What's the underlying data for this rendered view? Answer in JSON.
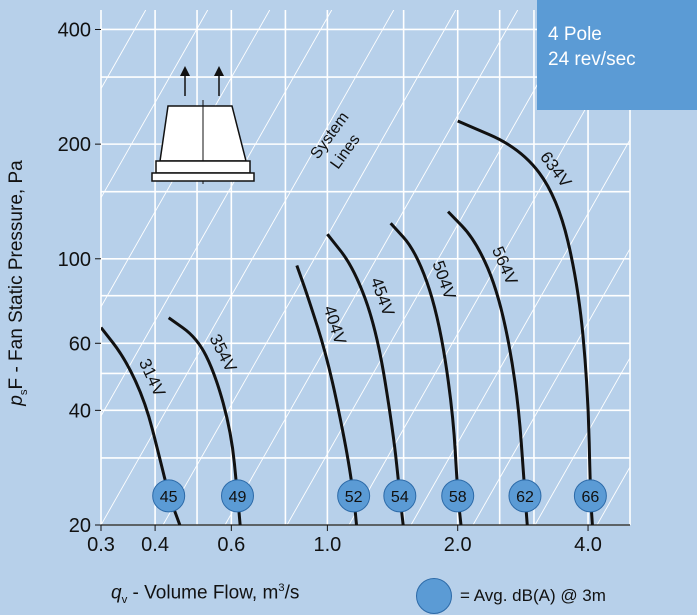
{
  "info": {
    "line1": "4 Pole",
    "line2": "24 rev/sec"
  },
  "axes": {
    "y_sym": "p",
    "y_sub": "s",
    "y_rest": "F - Fan Static Pressure, Pa",
    "x_sym": "q",
    "x_sub": "v",
    "x_rest": " - Volume Flow, m",
    "x_sup": "3",
    "x_end": "/s"
  },
  "legend": {
    "text": "= Avg. dB(A) @ 3m"
  },
  "system_lines_label": [
    "System",
    "Lines"
  ],
  "chart_data": {
    "type": "line",
    "x_scale": "log",
    "y_scale": "log",
    "xlim": [
      0.3,
      5.0
    ],
    "ylim": [
      20,
      450
    ],
    "x_ticks": [
      {
        "v": 0.3,
        "label": "0.3"
      },
      {
        "v": 0.4,
        "label": "0.4"
      },
      {
        "v": 0.6,
        "label": "0.6"
      },
      {
        "v": 1.0,
        "label": "1.0"
      },
      {
        "v": 2.0,
        "label": "2.0"
      },
      {
        "v": 4.0,
        "label": "4.0"
      }
    ],
    "y_ticks": [
      {
        "v": 20,
        "label": "20"
      },
      {
        "v": 40,
        "label": "40"
      },
      {
        "v": 60,
        "label": "60"
      },
      {
        "v": 100,
        "label": "100"
      },
      {
        "v": 200,
        "label": "200"
      },
      {
        "v": 400,
        "label": "400"
      }
    ],
    "x_grid": [
      0.3,
      0.4,
      0.5,
      0.6,
      0.8,
      1.0,
      1.5,
      2.0,
      2.5,
      3.0,
      4.0,
      5.0
    ],
    "y_grid": [
      20,
      30,
      40,
      50,
      60,
      80,
      100,
      150,
      200,
      300,
      400
    ],
    "grid": true,
    "series": [
      {
        "name": "314V",
        "dba": 45,
        "points": [
          [
            0.3,
            66
          ],
          [
            0.34,
            55
          ],
          [
            0.38,
            42
          ],
          [
            0.41,
            30
          ],
          [
            0.43,
            24
          ],
          [
            0.46,
            19.5
          ]
        ]
      },
      {
        "name": "354V",
        "dba": 49,
        "points": [
          [
            0.43,
            70
          ],
          [
            0.5,
            62
          ],
          [
            0.55,
            50
          ],
          [
            0.6,
            35
          ],
          [
            0.62,
            24
          ],
          [
            0.63,
            19.5
          ]
        ]
      },
      {
        "name": "404V",
        "dba": 52,
        "points": [
          [
            0.85,
            96
          ],
          [
            0.9,
            80
          ],
          [
            1.0,
            55
          ],
          [
            1.1,
            33
          ],
          [
            1.15,
            24
          ],
          [
            1.17,
            19.5
          ]
        ]
      },
      {
        "name": "454V",
        "dba": 54,
        "points": [
          [
            1.0,
            116
          ],
          [
            1.15,
            95
          ],
          [
            1.3,
            65
          ],
          [
            1.42,
            35
          ],
          [
            1.47,
            24
          ],
          [
            1.5,
            19.5
          ]
        ]
      },
      {
        "name": "504V",
        "dba": 58,
        "points": [
          [
            1.4,
            124
          ],
          [
            1.6,
            105
          ],
          [
            1.8,
            72
          ],
          [
            1.95,
            40
          ],
          [
            2.0,
            24
          ],
          [
            2.04,
            19.5
          ]
        ]
      },
      {
        "name": "564V",
        "dba": 62,
        "points": [
          [
            1.9,
            133
          ],
          [
            2.2,
            112
          ],
          [
            2.5,
            80
          ],
          [
            2.75,
            45
          ],
          [
            2.86,
            24
          ],
          [
            2.9,
            19.5
          ]
        ]
      },
      {
        "name": "634V",
        "dba": 66,
        "points": [
          [
            2.0,
            230
          ],
          [
            2.8,
            195
          ],
          [
            3.4,
            145
          ],
          [
            3.8,
            85
          ],
          [
            4.0,
            45
          ],
          [
            4.05,
            24
          ],
          [
            4.1,
            19.5
          ]
        ]
      }
    ]
  }
}
